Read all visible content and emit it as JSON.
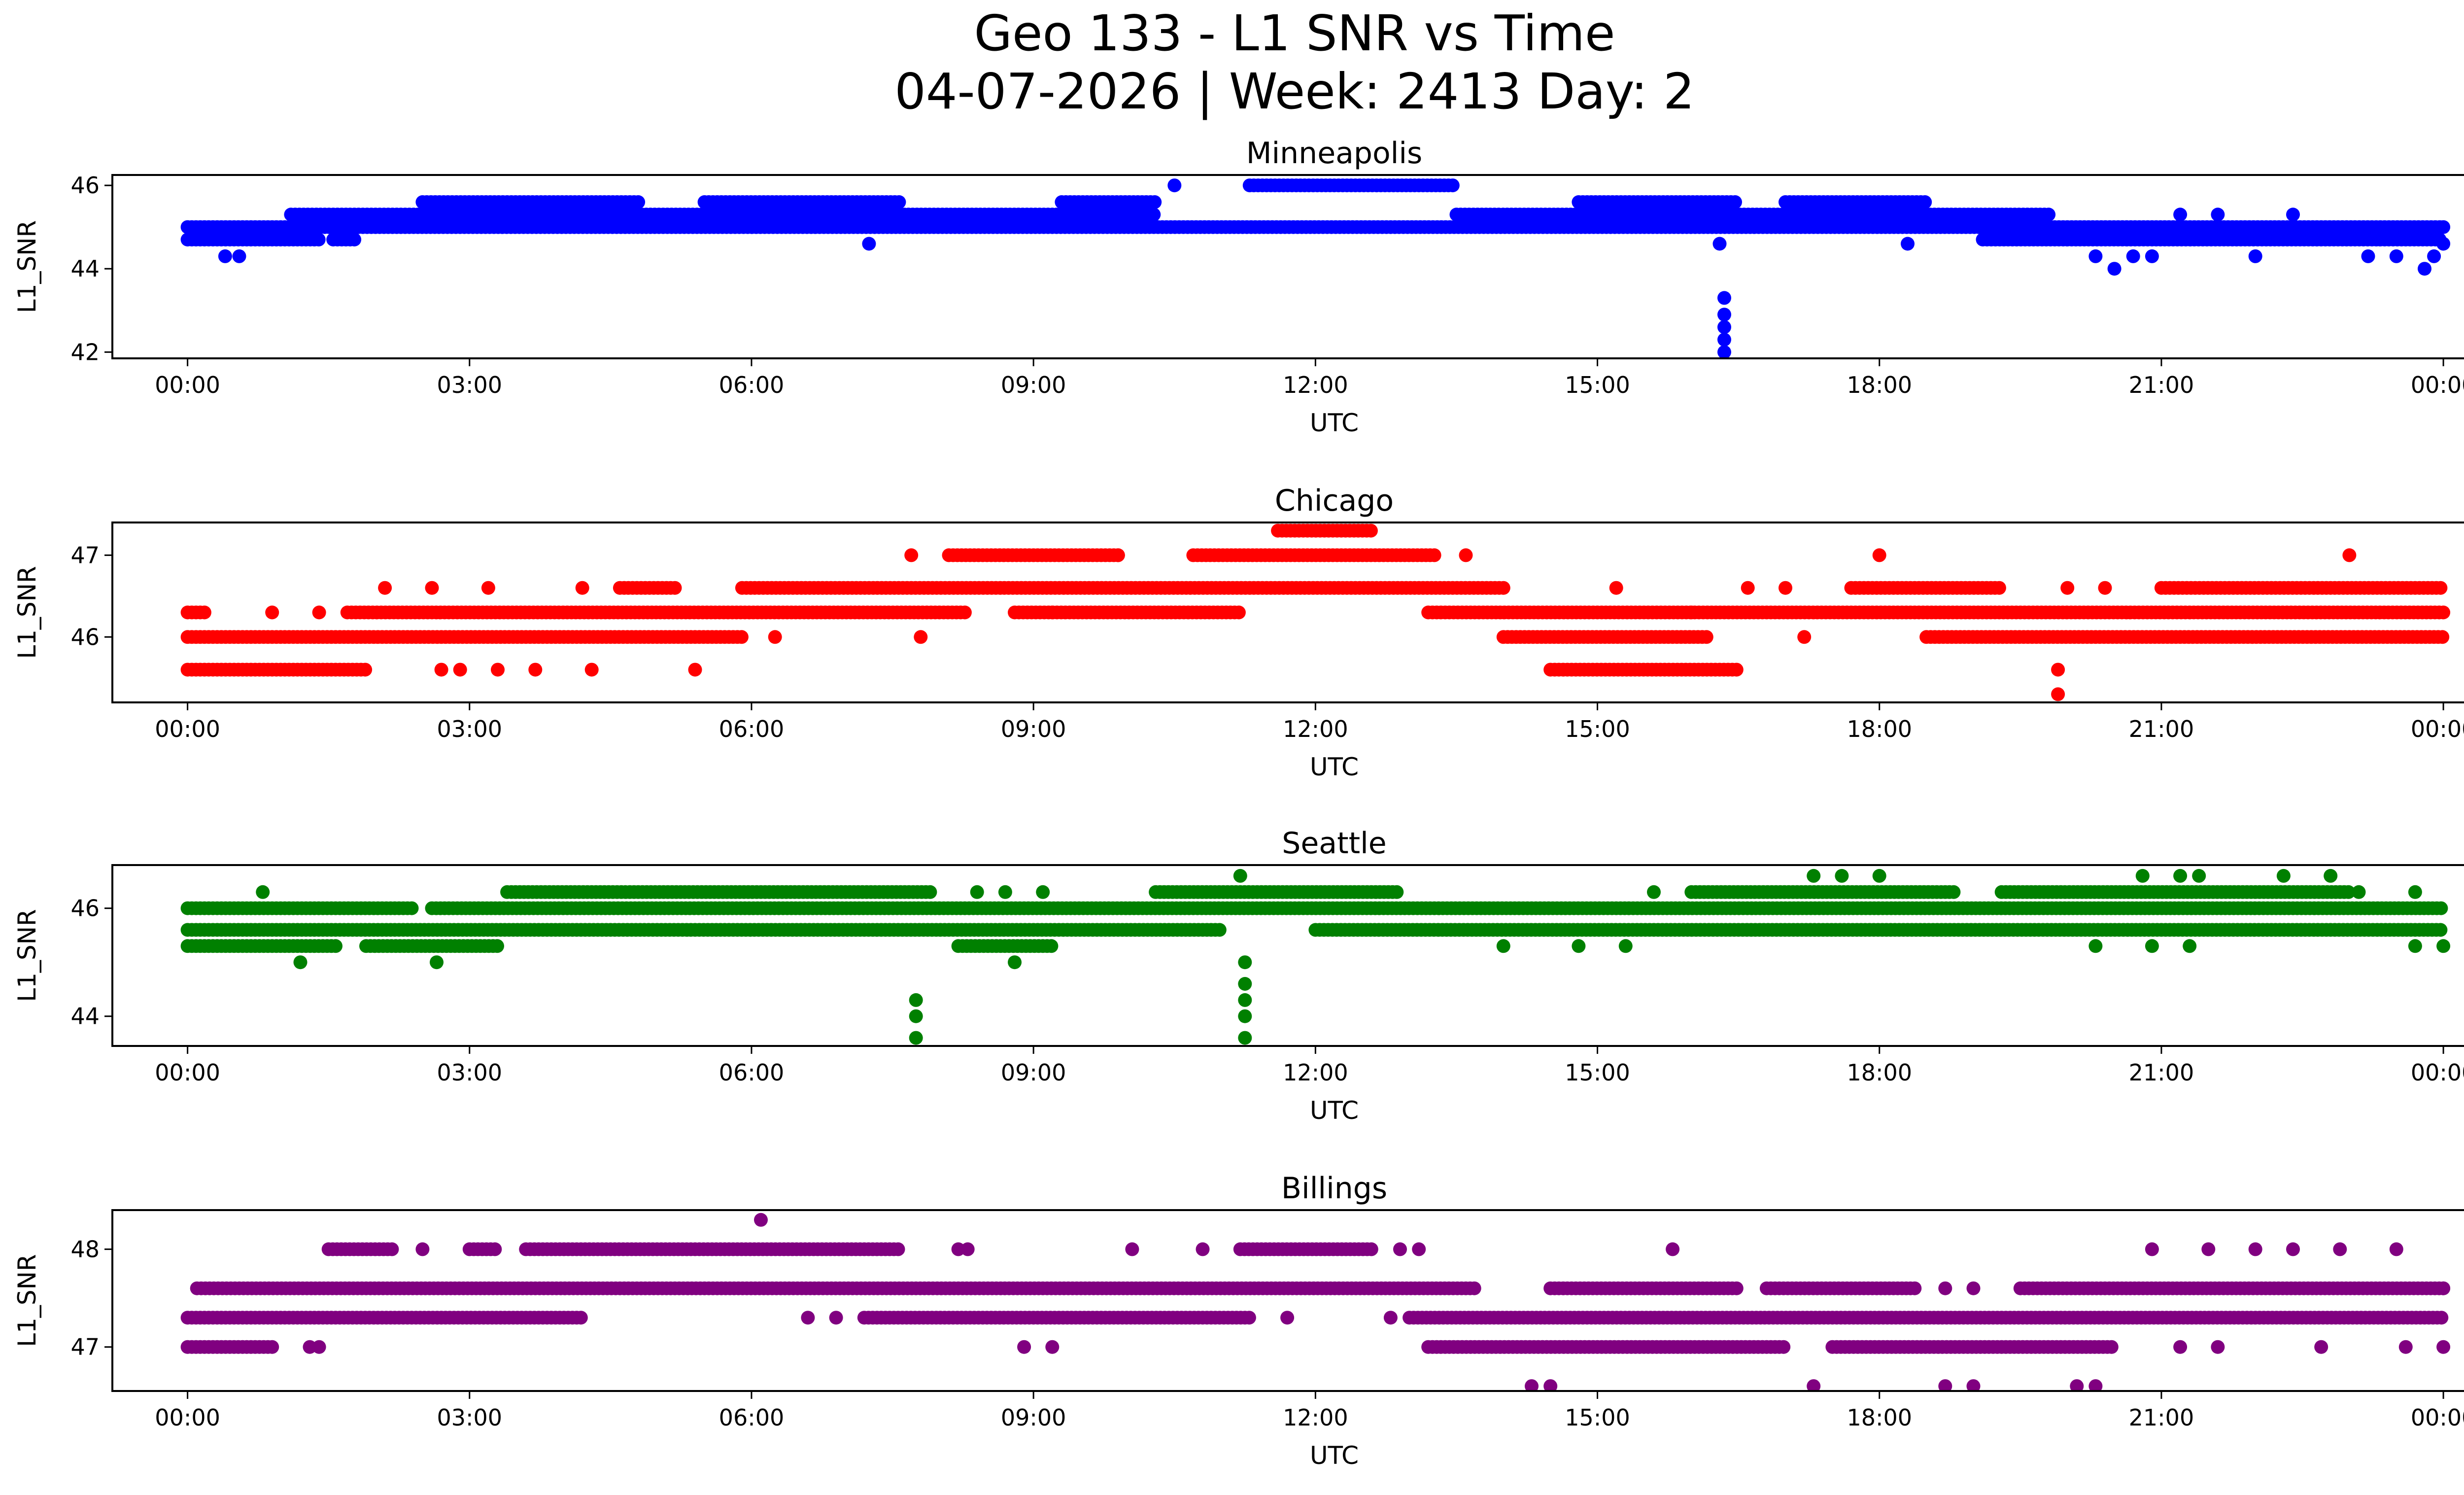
{
  "figure": {
    "title_line1": "Geo 133 - L1 SNR vs Time",
    "title_line2": "04-07-2026 | Week: 2413 Day: 2"
  },
  "chart_data": [
    {
      "type": "scatter",
      "title": "Minneapolis",
      "xlabel": "UTC",
      "ylabel": "L1_SNR",
      "color": "#0000ff",
      "xlim": [
        -0.8,
        25.2
      ],
      "ylim": [
        41.85,
        46.25
      ],
      "x_ticks": [
        {
          "value": 0,
          "label": "00:00"
        },
        {
          "value": 3,
          "label": "03:00"
        },
        {
          "value": 6,
          "label": "06:00"
        },
        {
          "value": 9,
          "label": "09:00"
        },
        {
          "value": 12,
          "label": "12:00"
        },
        {
          "value": 15,
          "label": "15:00"
        },
        {
          "value": 18,
          "label": "18:00"
        },
        {
          "value": 21,
          "label": "21:00"
        },
        {
          "value": 24,
          "label": "00:00"
        }
      ],
      "y_ticks": [
        {
          "value": 42,
          "label": "42"
        },
        {
          "value": 44,
          "label": "44"
        },
        {
          "value": 46,
          "label": "46"
        }
      ],
      "bands": [
        {
          "y": 45.0,
          "ranges": [
            [
              0.0,
              1.25
            ],
            [
              1.1,
              24.0
            ]
          ]
        },
        {
          "y": 44.7,
          "ranges": [
            [
              0.0,
              1.4
            ],
            [
              1.55,
              1.8
            ],
            [
              19.1,
              24.0
            ]
          ]
        },
        {
          "y": 45.3,
          "ranges": [
            [
              1.1,
              10.3
            ],
            [
              13.5,
              19.8
            ]
          ]
        },
        {
          "y": 45.6,
          "ranges": [
            [
              2.5,
              4.8
            ],
            [
              5.5,
              7.6
            ],
            [
              9.3,
              10.3
            ],
            [
              14.8,
              16.5
            ],
            [
              17.0,
              18.5
            ]
          ]
        },
        {
          "y": 46.0,
          "ranges": [
            [
              11.3,
              13.5
            ]
          ]
        }
      ],
      "points": [
        {
          "x": 0.4,
          "y": 44.3
        },
        {
          "x": 0.55,
          "y": 44.3
        },
        {
          "x": 7.25,
          "y": 44.6
        },
        {
          "x": 10.5,
          "y": 46.0
        },
        {
          "x": 16.3,
          "y": 44.6
        },
        {
          "x": 16.35,
          "y": 43.3
        },
        {
          "x": 16.35,
          "y": 42.9
        },
        {
          "x": 16.35,
          "y": 42.6
        },
        {
          "x": 16.35,
          "y": 42.3
        },
        {
          "x": 16.35,
          "y": 42.0
        },
        {
          "x": 18.3,
          "y": 44.6
        },
        {
          "x": 20.5,
          "y": 44.0
        },
        {
          "x": 20.3,
          "y": 44.3
        },
        {
          "x": 20.7,
          "y": 44.3
        },
        {
          "x": 20.9,
          "y": 44.3
        },
        {
          "x": 21.2,
          "y": 45.3
        },
        {
          "x": 21.6,
          "y": 45.3
        },
        {
          "x": 22.4,
          "y": 45.3
        },
        {
          "x": 23.2,
          "y": 44.3
        },
        {
          "x": 23.5,
          "y": 44.3
        },
        {
          "x": 23.8,
          "y": 44.0
        },
        {
          "x": 23.9,
          "y": 44.3
        },
        {
          "x": 24.0,
          "y": 45.0
        },
        {
          "x": 24.0,
          "y": 44.6
        },
        {
          "x": 22.0,
          "y": 44.3
        }
      ]
    },
    {
      "type": "scatter",
      "title": "Chicago",
      "xlabel": "UTC",
      "ylabel": "L1_SNR",
      "color": "#ff0000",
      "xlim": [
        -0.8,
        25.2
      ],
      "ylim": [
        45.2,
        47.4
      ],
      "x_ticks": [
        {
          "value": 0,
          "label": "00:00"
        },
        {
          "value": 3,
          "label": "03:00"
        },
        {
          "value": 6,
          "label": "06:00"
        },
        {
          "value": 9,
          "label": "09:00"
        },
        {
          "value": 12,
          "label": "12:00"
        },
        {
          "value": 15,
          "label": "15:00"
        },
        {
          "value": 18,
          "label": "18:00"
        },
        {
          "value": 21,
          "label": "21:00"
        },
        {
          "value": 24,
          "label": "00:00"
        }
      ],
      "y_ticks": [
        {
          "value": 46,
          "label": "46"
        },
        {
          "value": 47,
          "label": "47"
        }
      ],
      "bands": [
        {
          "y": 46.0,
          "ranges": [
            [
              0.0,
              5.9
            ],
            [
              14.0,
              16.2
            ],
            [
              18.5,
              24.0
            ]
          ]
        },
        {
          "y": 45.6,
          "ranges": [
            [
              0.0,
              1.9
            ],
            [
              14.5,
              16.5
            ]
          ]
        },
        {
          "y": 46.3,
          "ranges": [
            [
              0.0,
              0.2
            ],
            [
              1.7,
              8.3
            ],
            [
              8.8,
              11.2
            ],
            [
              13.2,
              24.0
            ]
          ]
        },
        {
          "y": 46.6,
          "ranges": [
            [
              4.6,
              5.2
            ],
            [
              5.9,
              14.0
            ],
            [
              17.7,
              19.3
            ],
            [
              21.0,
              24.0
            ]
          ]
        },
        {
          "y": 47.0,
          "ranges": [
            [
              8.1,
              9.9
            ],
            [
              10.7,
              13.3
            ]
          ]
        },
        {
          "y": 47.3,
          "ranges": [
            [
              11.6,
              12.6
            ]
          ]
        }
      ],
      "points": [
        {
          "x": 0.9,
          "y": 46.3
        },
        {
          "x": 1.4,
          "y": 46.3
        },
        {
          "x": 2.1,
          "y": 46.6
        },
        {
          "x": 2.6,
          "y": 46.6
        },
        {
          "x": 3.2,
          "y": 46.6
        },
        {
          "x": 4.2,
          "y": 46.6
        },
        {
          "x": 2.7,
          "y": 45.6
        },
        {
          "x": 2.9,
          "y": 45.6
        },
        {
          "x": 3.3,
          "y": 45.6
        },
        {
          "x": 3.7,
          "y": 45.6
        },
        {
          "x": 4.3,
          "y": 45.6
        },
        {
          "x": 5.4,
          "y": 45.6
        },
        {
          "x": 7.7,
          "y": 47.0
        },
        {
          "x": 7.8,
          "y": 46.0
        },
        {
          "x": 6.25,
          "y": 46.0
        },
        {
          "x": 9.2,
          "y": 46.3
        },
        {
          "x": 9.9,
          "y": 47.0
        },
        {
          "x": 13.6,
          "y": 47.0
        },
        {
          "x": 16.0,
          "y": 46.3
        },
        {
          "x": 15.2,
          "y": 46.6
        },
        {
          "x": 16.6,
          "y": 46.6
        },
        {
          "x": 17.0,
          "y": 46.6
        },
        {
          "x": 17.2,
          "y": 46.0
        },
        {
          "x": 18.0,
          "y": 47.0
        },
        {
          "x": 19.9,
          "y": 45.6
        },
        {
          "x": 19.9,
          "y": 45.3
        },
        {
          "x": 23.0,
          "y": 47.0
        },
        {
          "x": 20.0,
          "y": 46.6
        },
        {
          "x": 20.4,
          "y": 46.6
        }
      ]
    },
    {
      "type": "scatter",
      "title": "Seattle",
      "xlabel": "UTC",
      "ylabel": "L1_SNR",
      "color": "#008000",
      "xlim": [
        -0.8,
        25.2
      ],
      "ylim": [
        43.45,
        46.8
      ],
      "x_ticks": [
        {
          "value": 0,
          "label": "00:00"
        },
        {
          "value": 3,
          "label": "03:00"
        },
        {
          "value": 6,
          "label": "06:00"
        },
        {
          "value": 9,
          "label": "09:00"
        },
        {
          "value": 12,
          "label": "12:00"
        },
        {
          "value": 15,
          "label": "15:00"
        },
        {
          "value": 18,
          "label": "18:00"
        },
        {
          "value": 21,
          "label": "21:00"
        },
        {
          "value": 24,
          "label": "00:00"
        }
      ],
      "y_ticks": [
        {
          "value": 44,
          "label": "44"
        },
        {
          "value": 46,
          "label": "46"
        }
      ],
      "bands": [
        {
          "y": 45.6,
          "ranges": [
            [
              0.0,
              11.0
            ],
            [
              12.0,
              24.0
            ]
          ]
        },
        {
          "y": 46.0,
          "ranges": [
            [
              0.0,
              2.4
            ],
            [
              2.6,
              24.0
            ]
          ]
        },
        {
          "y": 45.3,
          "ranges": [
            [
              0.0,
              1.6
            ],
            [
              1.9,
              3.3
            ],
            [
              8.2,
              9.2
            ]
          ]
        },
        {
          "y": 46.3,
          "ranges": [
            [
              3.4,
              7.9
            ],
            [
              10.3,
              12.9
            ],
            [
              16.0,
              18.8
            ],
            [
              19.3,
              23.0
            ]
          ]
        }
      ],
      "points": [
        {
          "x": 0.8,
          "y": 46.3
        },
        {
          "x": 1.2,
          "y": 45.0
        },
        {
          "x": 2.65,
          "y": 45.0
        },
        {
          "x": 8.8,
          "y": 45.0
        },
        {
          "x": 7.75,
          "y": 44.3
        },
        {
          "x": 7.75,
          "y": 44.0
        },
        {
          "x": 7.75,
          "y": 43.6
        },
        {
          "x": 11.2,
          "y": 46.6
        },
        {
          "x": 11.25,
          "y": 45.0
        },
        {
          "x": 11.25,
          "y": 44.6
        },
        {
          "x": 11.25,
          "y": 44.3
        },
        {
          "x": 11.25,
          "y": 44.0
        },
        {
          "x": 11.25,
          "y": 43.6
        },
        {
          "x": 8.4,
          "y": 46.3
        },
        {
          "x": 8.7,
          "y": 46.3
        },
        {
          "x": 9.1,
          "y": 46.3
        },
        {
          "x": 14.0,
          "y": 45.3
        },
        {
          "x": 14.8,
          "y": 45.3
        },
        {
          "x": 15.3,
          "y": 45.3
        },
        {
          "x": 17.3,
          "y": 46.6
        },
        {
          "x": 17.6,
          "y": 46.6
        },
        {
          "x": 18.0,
          "y": 46.6
        },
        {
          "x": 20.8,
          "y": 46.6
        },
        {
          "x": 21.2,
          "y": 46.6
        },
        {
          "x": 21.4,
          "y": 46.6
        },
        {
          "x": 22.3,
          "y": 46.6
        },
        {
          "x": 22.8,
          "y": 46.6
        },
        {
          "x": 21.3,
          "y": 45.3
        },
        {
          "x": 20.3,
          "y": 45.3
        },
        {
          "x": 20.9,
          "y": 45.3
        },
        {
          "x": 23.1,
          "y": 46.3
        },
        {
          "x": 23.7,
          "y": 46.3
        },
        {
          "x": 23.7,
          "y": 45.3
        },
        {
          "x": 24.0,
          "y": 45.3
        },
        {
          "x": 15.6,
          "y": 46.3
        }
      ]
    },
    {
      "type": "scatter",
      "title": "Billings",
      "xlabel": "UTC",
      "ylabel": "L1_SNR",
      "color": "#800080",
      "xlim": [
        -0.8,
        25.2
      ],
      "ylim": [
        46.55,
        48.4
      ],
      "x_ticks": [
        {
          "value": 0,
          "label": "00:00"
        },
        {
          "value": 3,
          "label": "03:00"
        },
        {
          "value": 6,
          "label": "06:00"
        },
        {
          "value": 9,
          "label": "09:00"
        },
        {
          "value": 12,
          "label": "12:00"
        },
        {
          "value": 15,
          "label": "15:00"
        },
        {
          "value": 18,
          "label": "18:00"
        },
        {
          "value": 21,
          "label": "21:00"
        },
        {
          "value": 24,
          "label": "00:00"
        }
      ],
      "y_ticks": [
        {
          "value": 47,
          "label": "47"
        },
        {
          "value": 48,
          "label": "48"
        }
      ],
      "bands": [
        {
          "y": 47.0,
          "ranges": [
            [
              0.0,
              0.9
            ],
            [
              13.2,
              17.0
            ],
            [
              17.5,
              20.5
            ]
          ]
        },
        {
          "y": 47.3,
          "ranges": [
            [
              0.0,
              4.2
            ],
            [
              7.2,
              11.3
            ],
            [
              13.0,
              24.0
            ]
          ]
        },
        {
          "y": 47.6,
          "ranges": [
            [
              0.1,
              13.7
            ],
            [
              14.5,
              16.5
            ],
            [
              16.8,
              18.4
            ],
            [
              19.5,
              24.0
            ]
          ]
        },
        {
          "y": 48.0,
          "ranges": [
            [
              1.5,
              2.2
            ],
            [
              3.0,
              3.3
            ],
            [
              3.6,
              7.6
            ],
            [
              11.2,
              12.6
            ]
          ]
        }
      ],
      "points": [
        {
          "x": 1.3,
          "y": 47.0
        },
        {
          "x": 1.4,
          "y": 47.0
        },
        {
          "x": 2.5,
          "y": 48.0
        },
        {
          "x": 6.1,
          "y": 48.3
        },
        {
          "x": 8.2,
          "y": 48.0
        },
        {
          "x": 8.3,
          "y": 48.0
        },
        {
          "x": 10.05,
          "y": 48.0
        },
        {
          "x": 10.8,
          "y": 48.0
        },
        {
          "x": 12.9,
          "y": 48.0
        },
        {
          "x": 13.1,
          "y": 48.0
        },
        {
          "x": 15.8,
          "y": 48.0
        },
        {
          "x": 8.9,
          "y": 47.0
        },
        {
          "x": 9.2,
          "y": 47.0
        },
        {
          "x": 6.6,
          "y": 47.3
        },
        {
          "x": 6.9,
          "y": 47.3
        },
        {
          "x": 11.7,
          "y": 47.3
        },
        {
          "x": 12.8,
          "y": 47.3
        },
        {
          "x": 14.3,
          "y": 46.6
        },
        {
          "x": 14.5,
          "y": 46.6
        },
        {
          "x": 17.3,
          "y": 46.6
        },
        {
          "x": 18.7,
          "y": 46.6
        },
        {
          "x": 19.0,
          "y": 46.6
        },
        {
          "x": 20.1,
          "y": 46.6
        },
        {
          "x": 20.3,
          "y": 46.6
        },
        {
          "x": 18.7,
          "y": 47.6
        },
        {
          "x": 19.0,
          "y": 47.6
        },
        {
          "x": 20.9,
          "y": 48.0
        },
        {
          "x": 21.5,
          "y": 48.0
        },
        {
          "x": 22.0,
          "y": 48.0
        },
        {
          "x": 22.4,
          "y": 48.0
        },
        {
          "x": 22.9,
          "y": 48.0
        },
        {
          "x": 23.5,
          "y": 48.0
        },
        {
          "x": 21.2,
          "y": 47.0
        },
        {
          "x": 21.6,
          "y": 47.0
        },
        {
          "x": 22.7,
          "y": 47.0
        },
        {
          "x": 23.6,
          "y": 47.0
        },
        {
          "x": 24.0,
          "y": 47.0
        },
        {
          "x": 24.0,
          "y": 47.6
        }
      ]
    }
  ]
}
